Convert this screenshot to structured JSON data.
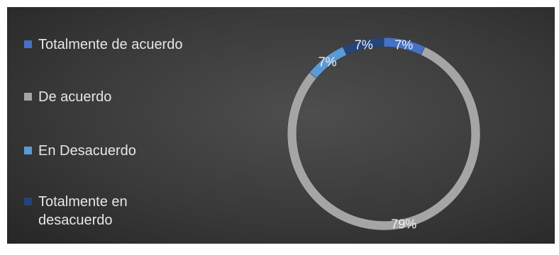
{
  "chart_data": {
    "type": "pie",
    "variant": "doughnut",
    "title": "",
    "legend_position": "left",
    "categories": [
      "Totalmente de acuerdo",
      "De acuerdo",
      "En Desacuerdo",
      "Totalmente en desacuerdo"
    ],
    "values": [
      7,
      79,
      7,
      7
    ],
    "labels": [
      "7%",
      "79%",
      "7%",
      "7%"
    ],
    "colors": [
      "#4472c4",
      "#a5a5a5",
      "#5b9bd5",
      "#264478"
    ]
  }
}
